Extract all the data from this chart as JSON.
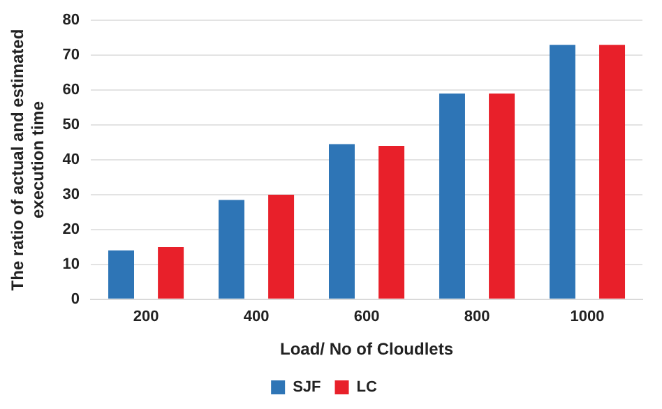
{
  "chart_data": {
    "type": "bar",
    "xlabel": "Load/ No of Cloudlets",
    "ylabel": "The ratio of actual and estimated execution time",
    "categories": [
      "200",
      "400",
      "600",
      "800",
      "1000"
    ],
    "series": [
      {
        "name": "SJF",
        "color": "#2e75b6",
        "values": [
          14,
          28.5,
          44.5,
          59,
          73
        ]
      },
      {
        "name": "LC",
        "color": "#e8202a",
        "values": [
          15,
          30,
          44,
          59,
          73
        ]
      }
    ],
    "ylim": [
      0,
      80
    ],
    "yticks": [
      0,
      10,
      20,
      30,
      40,
      50,
      60,
      70,
      80
    ],
    "grid": "y",
    "legend": "bottom"
  }
}
